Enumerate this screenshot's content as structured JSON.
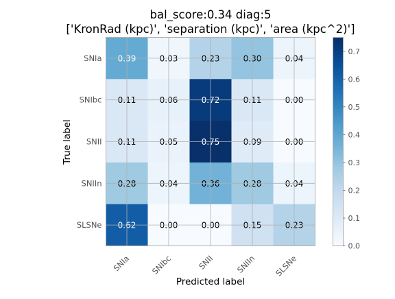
{
  "chart_data": {
    "type": "heatmap",
    "title": "bal_score:0.34 diag:5",
    "subtitle": "['KronRad (kpc)', 'separation (kpc)', 'area (kpc^2)']",
    "xlabel": "Predicted label",
    "ylabel": "True label",
    "x_categories": [
      "SNIa",
      "SNIbc",
      "SNII",
      "SNIIn",
      "SLSNe"
    ],
    "y_categories": [
      "SNIa",
      "SNIbc",
      "SNII",
      "SNIIn",
      "SLSNe"
    ],
    "values": [
      [
        0.39,
        0.03,
        0.23,
        0.3,
        0.04
      ],
      [
        0.11,
        0.06,
        0.72,
        0.11,
        0.0
      ],
      [
        0.11,
        0.05,
        0.75,
        0.09,
        0.0
      ],
      [
        0.28,
        0.04,
        0.36,
        0.28,
        0.04
      ],
      [
        0.62,
        0.0,
        0.0,
        0.15,
        0.23
      ]
    ],
    "cell_labels": [
      [
        "0.39",
        "0.03",
        "0.23",
        "0.30",
        "0.04"
      ],
      [
        "0.11",
        "0.06",
        "0.72",
        "0.11",
        "0.00"
      ],
      [
        "0.11",
        "0.05",
        "0.75",
        "0.09",
        "0.00"
      ],
      [
        "0.28",
        "0.04",
        "0.36",
        "0.28",
        "0.04"
      ],
      [
        "0.62",
        "0.00",
        "0.00",
        "0.15",
        "0.23"
      ]
    ],
    "colormap": "Blues",
    "vmin": 0.0,
    "vmax": 0.75,
    "colorbar_ticks": [
      "0.0",
      "0.1",
      "0.2",
      "0.3",
      "0.4",
      "0.5",
      "0.6",
      "0.7"
    ],
    "grid": true
  }
}
